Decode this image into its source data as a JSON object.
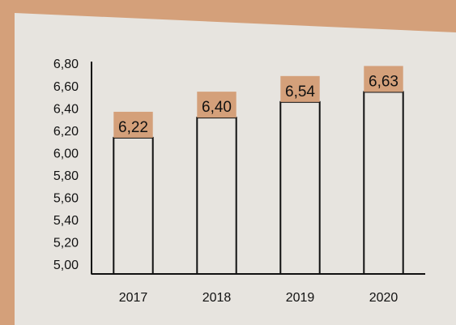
{
  "chart_data": {
    "type": "bar",
    "categories": [
      "2017",
      "2018",
      "2019",
      "2020"
    ],
    "values": [
      6.22,
      6.4,
      6.54,
      6.63
    ],
    "value_labels": [
      "6,22",
      "6,40",
      "6,54",
      "6,63"
    ],
    "color": "#d4a07a",
    "ylim": [
      5,
      6.8
    ],
    "yticks": [
      {
        "value": 5,
        "label": "5,00"
      },
      {
        "value": 5.2,
        "label": "5,20"
      },
      {
        "value": 5.4,
        "label": "5,40"
      },
      {
        "value": 5.6,
        "label": "5,60"
      },
      {
        "value": 5.8,
        "label": "5,80"
      },
      {
        "value": 6,
        "label": "6,00"
      },
      {
        "value": 6.2,
        "label": "6,20"
      },
      {
        "value": 6.4,
        "label": "6,40"
      },
      {
        "value": 6.6,
        "label": "6,60"
      },
      {
        "value": 6.8,
        "label": "6,80"
      }
    ],
    "grid": false
  }
}
